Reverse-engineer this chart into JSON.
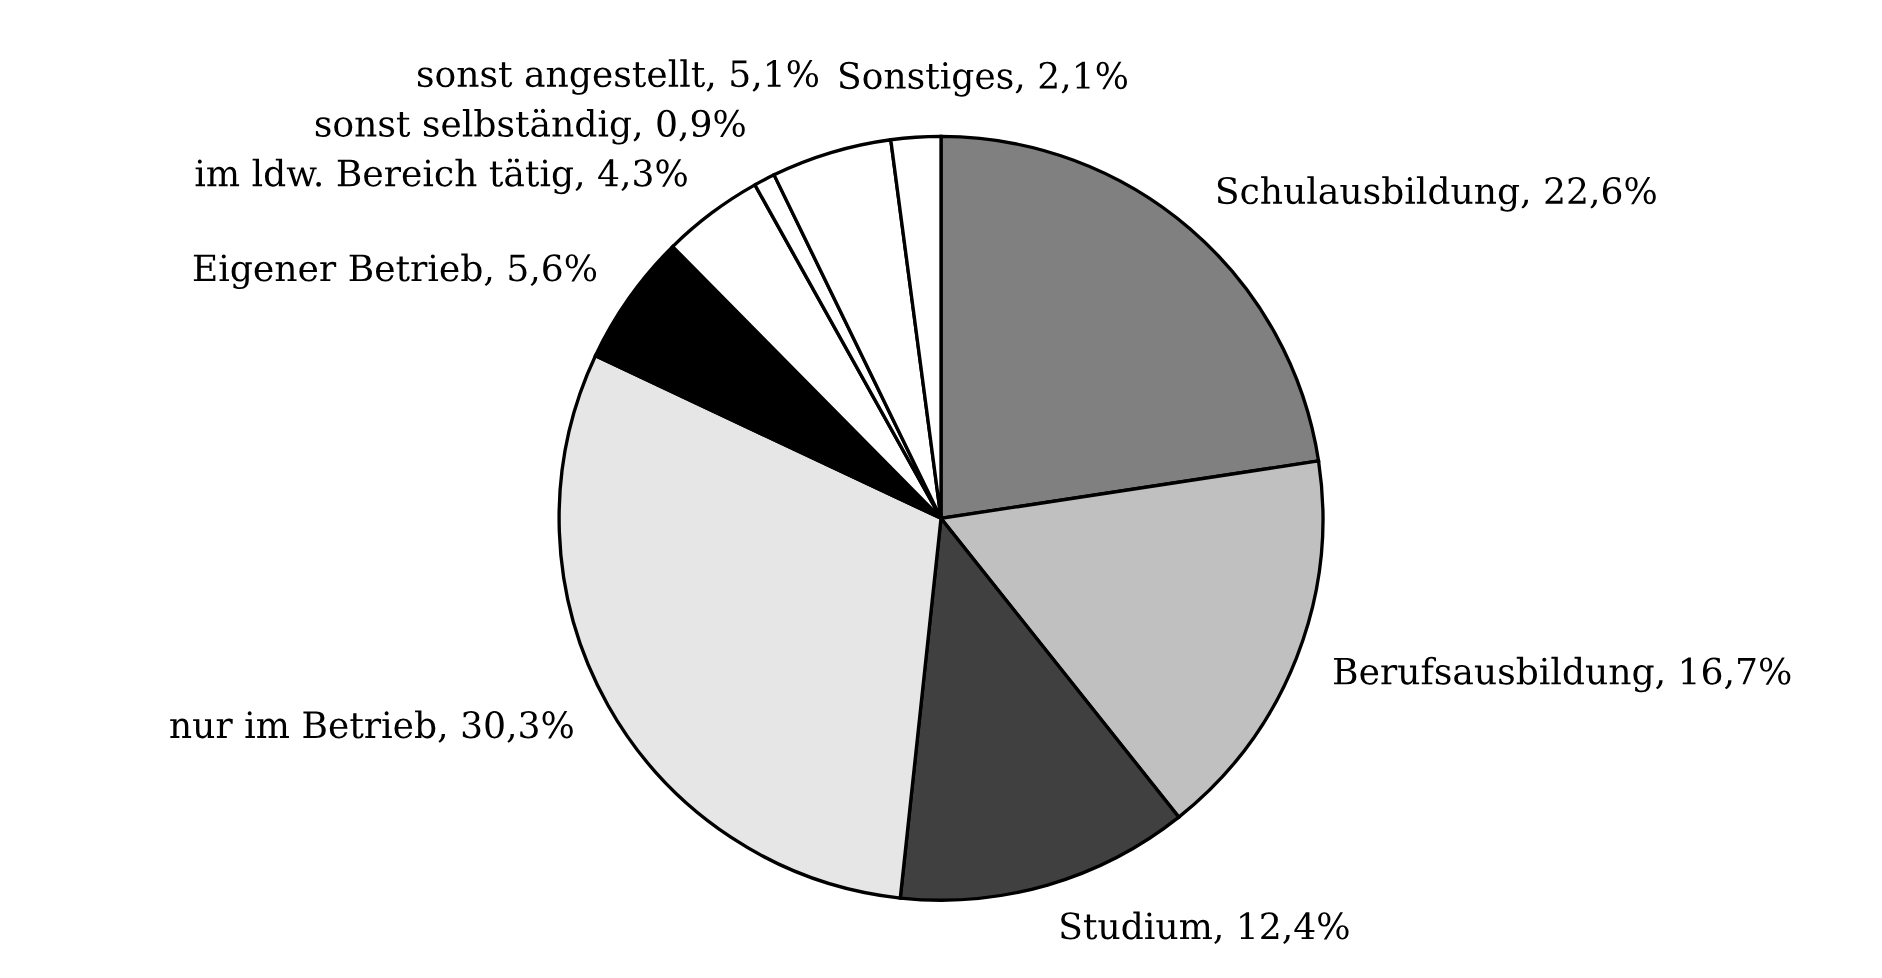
{
  "chart_data": {
    "type": "pie",
    "categories": [
      "Schulausbildung",
      "Berufsausbildung",
      "Studium",
      "nur im Betrieb",
      "Eigener Betrieb",
      "im ldw. Bereich tätig",
      "sonst selbständig",
      "sonst angestellt",
      "Sonstiges"
    ],
    "values": [
      22.6,
      16.7,
      12.4,
      30.3,
      5.6,
      4.3,
      0.9,
      5.1,
      2.1
    ],
    "value_labels": [
      "22,6%",
      "16,7%",
      "12,4%",
      "30,3%",
      "5,6%",
      "4,3%",
      "0,9%",
      "5,1%",
      "2,1%"
    ],
    "colors": [
      "#808080",
      "#c0c0c0",
      "#404040",
      "#e6e6e6",
      "#000000",
      "#ffffff",
      "#ffffff",
      "#ffffff",
      "#ffffff"
    ]
  }
}
